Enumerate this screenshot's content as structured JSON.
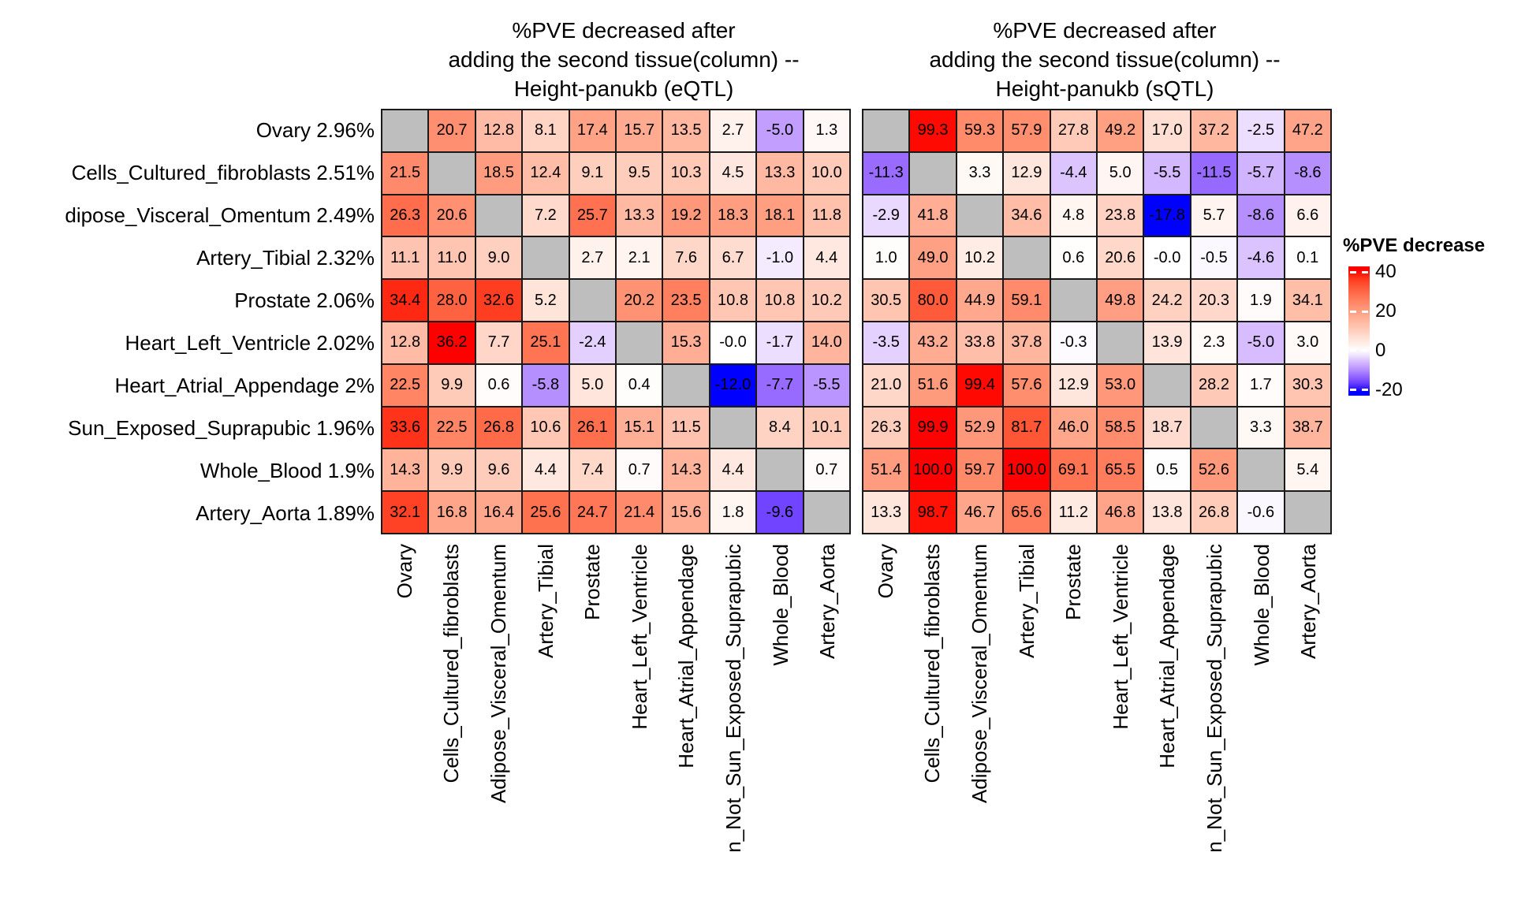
{
  "legend": {
    "title": "%PVE decrease",
    "ticks": [
      40,
      20,
      0,
      -20
    ],
    "scale_min": -20,
    "scale_max": 40,
    "top_color": "#FF0000",
    "mid_color": "#FFFFFF",
    "bottom_color": "#0000FF"
  },
  "colors": {
    "diagonal": "#BEBEBE",
    "border": "#1A1A1A",
    "background": "#FFFFFF",
    "cell_text": "#000000"
  },
  "chart_data": [
    {
      "type": "heatmap",
      "id": "eqtl",
      "title_lines": [
        "%PVE decreased after",
        "adding the second tissue(column) --",
        "Height-panukb (eQTL)"
      ],
      "row_labels": [
        "Ovary 2.96%",
        "Cells_Cultured_fibroblasts 2.51%",
        "dipose_Visceral_Omentum 2.49%",
        "Artery_Tibial 2.32%",
        "Prostate 2.06%",
        "Heart_Left_Ventricle 2.02%",
        "Heart_Atrial_Appendage 2%",
        "Sun_Exposed_Suprapubic 1.96%",
        "Whole_Blood 1.9%",
        "Artery_Aorta 1.89%"
      ],
      "col_labels": [
        "Ovary",
        "Cells_Cultured_fibroblasts",
        "Adipose_Visceral_Omentum",
        "Artery_Tibial",
        "Prostate",
        "Heart_Left_Ventricle",
        "Heart_Atrial_Appendage",
        "n_Not_Sun_Exposed_Suprapubic",
        "Whole_Blood",
        "Artery_Aorta"
      ],
      "color_scale": {
        "min": -12.0,
        "max": 36.2,
        "min_color": "#0000FF",
        "zero_color": "#FFFFFF",
        "max_color": "#FF0000"
      },
      "values": [
        [
          null,
          20.7,
          12.8,
          8.1,
          17.4,
          15.7,
          13.5,
          2.7,
          -5.0,
          1.3
        ],
        [
          21.5,
          null,
          18.5,
          12.4,
          9.1,
          9.5,
          10.3,
          4.5,
          13.3,
          10.0
        ],
        [
          26.3,
          20.6,
          null,
          7.2,
          25.7,
          13.3,
          19.2,
          18.3,
          18.1,
          11.8
        ],
        [
          11.1,
          11.0,
          9.0,
          null,
          2.7,
          2.1,
          7.6,
          6.7,
          -1.0,
          4.4
        ],
        [
          34.4,
          28.0,
          32.6,
          5.2,
          null,
          20.2,
          23.5,
          10.8,
          10.8,
          10.2
        ],
        [
          12.8,
          36.2,
          7.7,
          25.1,
          -2.4,
          null,
          15.3,
          -0.0,
          -1.7,
          14.0
        ],
        [
          22.5,
          9.9,
          0.6,
          -5.8,
          5.0,
          0.4,
          null,
          -12.0,
          -7.7,
          -5.5
        ],
        [
          33.6,
          22.5,
          26.8,
          10.6,
          26.1,
          15.1,
          11.5,
          null,
          8.4,
          10.1
        ],
        [
          14.3,
          9.9,
          9.6,
          4.4,
          7.4,
          0.7,
          14.3,
          4.4,
          null,
          0.7
        ],
        [
          32.1,
          16.8,
          16.4,
          25.6,
          24.7,
          21.4,
          15.6,
          1.8,
          -9.6,
          null
        ]
      ]
    },
    {
      "type": "heatmap",
      "id": "sqtl",
      "title_lines": [
        "%PVE decreased after",
        "adding the second tissue(column) --",
        "Height-panukb (sQTL)"
      ],
      "row_labels": [
        "Ovary 2.96%",
        "Cells_Cultured_fibroblasts 2.51%",
        "dipose_Visceral_Omentum 2.49%",
        "Artery_Tibial 2.32%",
        "Prostate 2.06%",
        "Heart_Left_Ventricle 2.02%",
        "Heart_Atrial_Appendage 2%",
        "Sun_Exposed_Suprapubic 1.96%",
        "Whole_Blood 1.9%",
        "Artery_Aorta 1.89%"
      ],
      "col_labels": [
        "Ovary",
        "Cells_Cultured_fibroblasts",
        "Adipose_Visceral_Omentum",
        "Artery_Tibial",
        "Prostate",
        "Heart_Left_Ventricle",
        "Heart_Atrial_Appendage",
        "n_Not_Sun_Exposed_Suprapubic",
        "Whole_Blood",
        "Artery_Aorta"
      ],
      "color_scale": {
        "min": -17.8,
        "max": 100.0,
        "min_color": "#0000FF",
        "zero_color": "#FFFFFF",
        "max_color": "#FF0000"
      },
      "values": [
        [
          null,
          99.3,
          59.3,
          57.9,
          27.8,
          49.2,
          17.0,
          37.2,
          -2.5,
          47.2
        ],
        [
          -11.3,
          null,
          3.3,
          12.9,
          -4.4,
          5.0,
          -5.5,
          -11.5,
          -5.7,
          -8.6
        ],
        [
          -2.9,
          41.8,
          null,
          34.6,
          4.8,
          23.8,
          -17.8,
          5.7,
          -8.6,
          6.6
        ],
        [
          1.0,
          49.0,
          10.2,
          null,
          0.6,
          20.6,
          -0.0,
          -0.5,
          -4.6,
          0.1
        ],
        [
          30.5,
          80.0,
          44.9,
          59.1,
          null,
          49.8,
          24.2,
          20.3,
          1.9,
          34.1
        ],
        [
          -3.5,
          43.2,
          33.8,
          37.8,
          -0.3,
          null,
          13.9,
          2.3,
          -5.0,
          3.0
        ],
        [
          21.0,
          51.6,
          99.4,
          57.6,
          12.9,
          53.0,
          null,
          28.2,
          1.7,
          30.3
        ],
        [
          26.3,
          99.9,
          52.9,
          81.7,
          46.0,
          58.5,
          18.7,
          null,
          3.3,
          38.7
        ],
        [
          51.4,
          100.0,
          59.7,
          100.0,
          69.1,
          65.5,
          0.5,
          52.6,
          null,
          5.4
        ],
        [
          13.3,
          98.7,
          46.7,
          65.6,
          11.2,
          46.8,
          13.8,
          26.8,
          -0.6,
          null
        ]
      ]
    }
  ]
}
